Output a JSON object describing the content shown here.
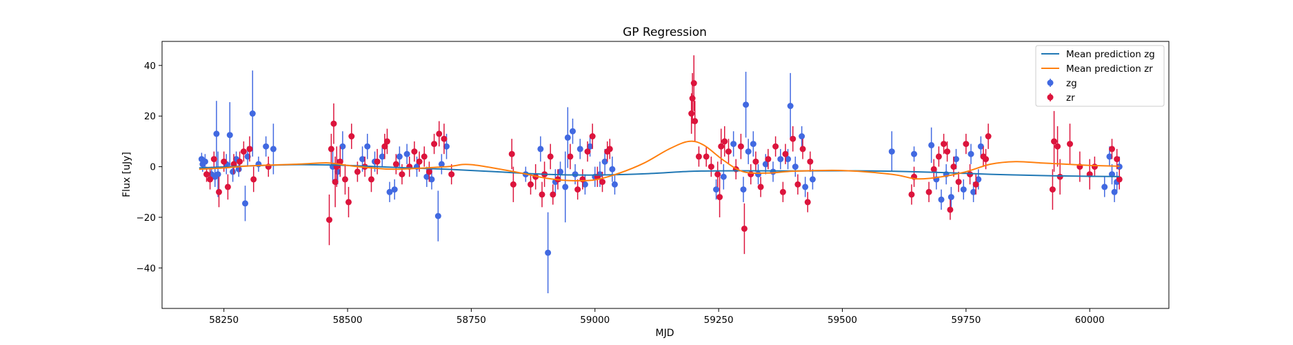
{
  "chart_data": {
    "type": "scatter",
    "title": "GP Regression",
    "xlabel": "MJD",
    "ylabel": "Flux [uJy]",
    "xlim": [
      58125,
      60160
    ],
    "ylim": [
      -56,
      49.5
    ],
    "xticks": [
      58250,
      58500,
      58750,
      59000,
      59250,
      59500,
      59750,
      60000
    ],
    "yticks": [
      -40,
      -20,
      0,
      20,
      40
    ],
    "legend_position": "top-right",
    "grid": false,
    "colors": {
      "zg_line": "#1f77b4",
      "zr_line": "#ff7f0e",
      "zg_points": "#4169e1",
      "zr_points": "#dc143c"
    },
    "series": [
      {
        "name": "Mean prediction zg",
        "kind": "line",
        "x": [
          58200,
          58300,
          58400,
          58500,
          58600,
          58700,
          58800,
          58900,
          59000,
          59100,
          59200,
          59300,
          59400,
          59500,
          59600,
          59700,
          59800,
          59900,
          60000,
          60060
        ],
        "y": [
          -0.5,
          0.3,
          0.8,
          0.5,
          -0.3,
          -1.0,
          -2.0,
          -3.0,
          -3.3,
          -2.8,
          -1.8,
          -1.6,
          -1.7,
          -1.6,
          -1.8,
          -2.3,
          -3.0,
          -3.5,
          -3.8,
          -3.9
        ]
      },
      {
        "name": "Mean prediction zr",
        "kind": "line",
        "x": [
          58200,
          58250,
          58300,
          58400,
          58460,
          58500,
          58550,
          58600,
          58700,
          58750,
          58850,
          58900,
          58950,
          59000,
          59050,
          59100,
          59150,
          59190,
          59220,
          59260,
          59300,
          59350,
          59400,
          59500,
          59600,
          59650,
          59700,
          59750,
          59800,
          59850,
          59900,
          59950,
          60000,
          60060
        ],
        "y": [
          -1.0,
          -0.5,
          0.3,
          1.0,
          1.5,
          0.5,
          -0.5,
          -1.0,
          0.0,
          0.8,
          -2.5,
          -4.5,
          -5.5,
          -5.2,
          -2.5,
          1.5,
          7.0,
          10.0,
          8.5,
          2.5,
          -2.0,
          -2.5,
          -1.8,
          -1.5,
          -3.0,
          -4.8,
          -4.0,
          -2.0,
          1.0,
          2.0,
          1.5,
          1.0,
          0.5,
          0.2
        ]
      },
      {
        "name": "zg",
        "kind": "errorbar",
        "points": [
          [
            58205,
            3,
            2.5
          ],
          [
            58207,
            1,
            3
          ],
          [
            58212,
            2,
            3
          ],
          [
            58225,
            -3,
            3
          ],
          [
            58232,
            -4,
            4
          ],
          [
            58235,
            13,
            13
          ],
          [
            58238,
            -3,
            9
          ],
          [
            58255,
            1,
            4
          ],
          [
            58262,
            12.5,
            13
          ],
          [
            58268,
            -2,
            4
          ],
          [
            58275,
            3,
            3
          ],
          [
            58280,
            -1,
            3
          ],
          [
            58293,
            -14.5,
            7
          ],
          [
            58298,
            4,
            4
          ],
          [
            58308,
            21,
            17
          ],
          [
            58320,
            1,
            3
          ],
          [
            58335,
            8,
            4
          ],
          [
            58350,
            7,
            10
          ],
          [
            58470,
            0,
            6
          ],
          [
            58480,
            -2,
            5
          ],
          [
            58490,
            8,
            6
          ],
          [
            58530,
            3,
            5
          ],
          [
            58540,
            8,
            5
          ],
          [
            58555,
            2,
            4
          ],
          [
            58570,
            4,
            4
          ],
          [
            58585,
            -10,
            4
          ],
          [
            58595,
            -9,
            4
          ],
          [
            58605,
            4,
            4
          ],
          [
            58620,
            5,
            4
          ],
          [
            58640,
            0,
            4
          ],
          [
            58660,
            -4,
            4
          ],
          [
            58670,
            -5,
            4
          ],
          [
            58683,
            -19.5,
            10
          ],
          [
            58690,
            1,
            4
          ],
          [
            58700,
            8,
            5
          ],
          [
            58860,
            -3,
            3
          ],
          [
            58890,
            7,
            5
          ],
          [
            58905,
            -34,
            16
          ],
          [
            58920,
            -6,
            5
          ],
          [
            58930,
            -2,
            4
          ],
          [
            58940,
            -8,
            14
          ],
          [
            58945,
            11.5,
            12
          ],
          [
            58955,
            14,
            5
          ],
          [
            58960,
            -3,
            4
          ],
          [
            58970,
            7,
            4
          ],
          [
            58980,
            -7,
            4
          ],
          [
            58990,
            8,
            4
          ],
          [
            59000,
            -4,
            4
          ],
          [
            59010,
            -3,
            5
          ],
          [
            59020,
            2,
            5
          ],
          [
            59035,
            -1,
            5
          ],
          [
            59040,
            -7,
            4
          ],
          [
            59245,
            -9,
            4
          ],
          [
            59260,
            -4,
            5
          ],
          [
            59280,
            9,
            5
          ],
          [
            59300,
            -9,
            5
          ],
          [
            59305,
            24.5,
            13
          ],
          [
            59310,
            6,
            5
          ],
          [
            59320,
            9,
            5
          ],
          [
            59330,
            -3,
            4
          ],
          [
            59345,
            1,
            4
          ],
          [
            59360,
            -2,
            4
          ],
          [
            59375,
            3,
            4
          ],
          [
            59390,
            3,
            4
          ],
          [
            59395,
            24,
            13
          ],
          [
            59405,
            0,
            4
          ],
          [
            59418,
            12,
            4
          ],
          [
            59425,
            -8,
            4
          ],
          [
            59440,
            -5,
            4
          ],
          [
            59600,
            6,
            8
          ],
          [
            59645,
            5,
            3
          ],
          [
            59680,
            8.5,
            7
          ],
          [
            59690,
            -5,
            4
          ],
          [
            59700,
            -13,
            4
          ],
          [
            59710,
            -3,
            4
          ],
          [
            59720,
            -12,
            4
          ],
          [
            59730,
            3,
            4
          ],
          [
            59745,
            -9,
            4
          ],
          [
            59760,
            5,
            4
          ],
          [
            59765,
            -10,
            4
          ],
          [
            59775,
            -5,
            4
          ],
          [
            59780,
            8,
            4
          ],
          [
            60030,
            -8,
            4
          ],
          [
            60040,
            4,
            4
          ],
          [
            60045,
            -3,
            4
          ],
          [
            60050,
            -10,
            4
          ],
          [
            60055,
            -6,
            4
          ],
          [
            60060,
            0,
            4
          ]
        ]
      },
      {
        "name": "zr",
        "kind": "errorbar",
        "points": [
          [
            58215,
            -3,
            3
          ],
          [
            58222,
            -5,
            4
          ],
          [
            58230,
            3,
            3
          ],
          [
            58240,
            -10,
            6
          ],
          [
            58250,
            2,
            4
          ],
          [
            58258,
            -8,
            5
          ],
          [
            58270,
            1,
            4
          ],
          [
            58282,
            2,
            4
          ],
          [
            58290,
            6,
            4
          ],
          [
            58302,
            7,
            5
          ],
          [
            58310,
            -5,
            5
          ],
          [
            58340,
            0,
            4
          ],
          [
            58463,
            -21,
            10
          ],
          [
            58467,
            7,
            6
          ],
          [
            58472,
            17,
            8
          ],
          [
            58475,
            -6,
            10
          ],
          [
            58478,
            0,
            8
          ],
          [
            58485,
            2,
            6
          ],
          [
            58495,
            -5,
            6
          ],
          [
            58502,
            -14,
            6
          ],
          [
            58508,
            12,
            5
          ],
          [
            58520,
            -2,
            4
          ],
          [
            58535,
            0,
            4
          ],
          [
            58548,
            -5,
            5
          ],
          [
            58560,
            2,
            5
          ],
          [
            58575,
            8,
            5
          ],
          [
            58580,
            10,
            5
          ],
          [
            58598,
            1,
            4
          ],
          [
            58610,
            -3,
            4
          ],
          [
            58625,
            0,
            4
          ],
          [
            58635,
            6,
            4
          ],
          [
            58645,
            2,
            4
          ],
          [
            58655,
            4,
            4
          ],
          [
            58665,
            -2,
            4
          ],
          [
            58675,
            9,
            4
          ],
          [
            58685,
            13,
            5
          ],
          [
            58695,
            11,
            6
          ],
          [
            58710,
            -3,
            4
          ],
          [
            58832,
            5,
            6
          ],
          [
            58835,
            -7,
            7
          ],
          [
            58870,
            -7,
            4
          ],
          [
            58880,
            -4,
            5
          ],
          [
            58893,
            -11,
            5
          ],
          [
            58898,
            -3,
            5
          ],
          [
            58910,
            4,
            5
          ],
          [
            58915,
            -11,
            4
          ],
          [
            58925,
            -5,
            4
          ],
          [
            58950,
            4,
            5
          ],
          [
            58965,
            -9,
            4
          ],
          [
            58975,
            -5,
            4
          ],
          [
            58985,
            6,
            4
          ],
          [
            58995,
            12,
            5
          ],
          [
            59005,
            -4,
            4
          ],
          [
            59015,
            -6,
            4
          ],
          [
            59025,
            6,
            4
          ],
          [
            59030,
            7,
            4
          ],
          [
            59195,
            21,
            8
          ],
          [
            59197,
            27,
            10
          ],
          [
            59200,
            33,
            11
          ],
          [
            59202,
            18,
            8
          ],
          [
            59210,
            4,
            4
          ],
          [
            59225,
            4,
            4
          ],
          [
            59235,
            0,
            4
          ],
          [
            59248,
            -3,
            5
          ],
          [
            59252,
            -12,
            8
          ],
          [
            59255,
            8,
            7
          ],
          [
            59262,
            10,
            6
          ],
          [
            59270,
            6,
            5
          ],
          [
            59285,
            -1,
            4
          ],
          [
            59295,
            8,
            5
          ],
          [
            59302,
            -24.5,
            10
          ],
          [
            59315,
            -3,
            4
          ],
          [
            59325,
            2,
            4
          ],
          [
            59335,
            -8,
            4
          ],
          [
            59350,
            3,
            4
          ],
          [
            59365,
            8,
            4
          ],
          [
            59380,
            -10,
            4
          ],
          [
            59385,
            5,
            4
          ],
          [
            59400,
            11,
            5
          ],
          [
            59410,
            -7,
            4
          ],
          [
            59420,
            7,
            4
          ],
          [
            59430,
            -14,
            4
          ],
          [
            59435,
            2,
            4
          ],
          [
            59640,
            -11,
            4
          ],
          [
            59645,
            -4,
            4
          ],
          [
            59675,
            -10,
            4
          ],
          [
            59685,
            -1,
            4
          ],
          [
            59695,
            4,
            4
          ],
          [
            59705,
            9,
            4
          ],
          [
            59712,
            6,
            4
          ],
          [
            59718,
            -17,
            4
          ],
          [
            59725,
            0,
            4
          ],
          [
            59735,
            -6,
            4
          ],
          [
            59750,
            9,
            4
          ],
          [
            59758,
            -3,
            4
          ],
          [
            59770,
            -7,
            4
          ],
          [
            59785,
            4,
            4
          ],
          [
            59790,
            3,
            4
          ],
          [
            59795,
            12,
            5
          ],
          [
            59925,
            -9,
            8
          ],
          [
            59928,
            10,
            12
          ],
          [
            59935,
            8,
            8
          ],
          [
            59940,
            -4,
            7
          ],
          [
            59960,
            9,
            8
          ],
          [
            59980,
            0,
            6
          ],
          [
            60000,
            -3,
            6
          ],
          [
            60010,
            0,
            4
          ],
          [
            60045,
            7,
            4
          ],
          [
            60055,
            3,
            4
          ],
          [
            60060,
            -5,
            4
          ]
        ]
      }
    ]
  }
}
